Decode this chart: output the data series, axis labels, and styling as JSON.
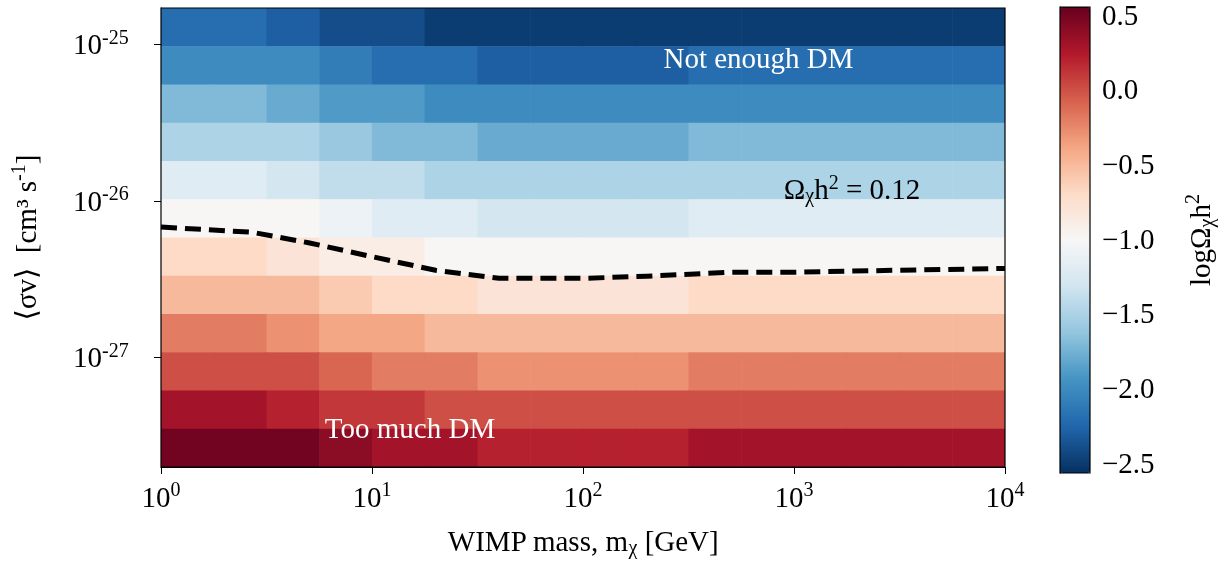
{
  "chart_data": {
    "type": "heatmap",
    "xlabel": "WIMP mass, m$_{χ}$ [GeV]",
    "ylabel": "⟨σv⟩  [cm³ s$^{-1}$]",
    "clabel": "logΩ$_{χ}$h$^{2}$",
    "log": "xy",
    "xlim": [
      1,
      10000
    ],
    "ylim": [
      2e-28,
      1.7e-25
    ],
    "xticks": [
      {
        "value": 1,
        "label": "10$^{0}$"
      },
      {
        "value": 10,
        "label": "10$^{1}$"
      },
      {
        "value": 100,
        "label": "10$^{2}$"
      },
      {
        "value": 1000,
        "label": "10$^{3}$"
      },
      {
        "value": 10000,
        "label": "10$^{4}$"
      }
    ],
    "yticks": [
      {
        "value": 1e-27,
        "label": "10$^{-27}$"
      },
      {
        "value": 1e-26,
        "label": "10$^{-26}$"
      },
      {
        "value": 1e-25,
        "label": "10$^{-25}$"
      }
    ],
    "x": [
      1.33,
      2.37,
      4.22,
      7.5,
      13.3,
      23.7,
      42.2,
      75,
      133,
      237,
      422,
      750,
      1333,
      2371,
      4217,
      7499
    ],
    "cells": [
      [
        -2.2,
        -2.2,
        -2.3,
        -2.4,
        -2.4,
        -2.5,
        -2.5,
        -2.5,
        -2.5,
        -2.5,
        -2.5,
        -2.5,
        -2.5,
        -2.5,
        -2.5,
        -2.5
      ],
      [
        -2.0,
        -2.0,
        -2.0,
        -2.1,
        -2.2,
        -2.2,
        -2.3,
        -2.3,
        -2.3,
        -2.3,
        -2.2,
        -2.2,
        -2.2,
        -2.2,
        -2.2,
        -2.2
      ],
      [
        -1.7,
        -1.7,
        -1.8,
        -1.9,
        -1.9,
        -2.0,
        -2.0,
        -2.0,
        -2.0,
        -2.0,
        -2.0,
        -2.0,
        -2.0,
        -2.0,
        -2.0,
        -2.0
      ],
      [
        -1.5,
        -1.5,
        -1.5,
        -1.6,
        -1.7,
        -1.7,
        -1.8,
        -1.8,
        -1.8,
        -1.8,
        -1.7,
        -1.7,
        -1.7,
        -1.7,
        -1.7,
        -1.7
      ],
      [
        -1.2,
        -1.2,
        -1.3,
        -1.4,
        -1.4,
        -1.5,
        -1.5,
        -1.5,
        -1.5,
        -1.5,
        -1.5,
        -1.5,
        -1.5,
        -1.5,
        -1.5,
        -1.5
      ],
      [
        -1.0,
        -1.0,
        -1.0,
        -1.1,
        -1.2,
        -1.2,
        -1.3,
        -1.3,
        -1.3,
        -1.3,
        -1.2,
        -1.2,
        -1.2,
        -1.2,
        -1.2,
        -1.2
      ],
      [
        -0.7,
        -0.7,
        -0.8,
        -0.9,
        -0.9,
        -1.0,
        -1.0,
        -1.0,
        -1.0,
        -1.0,
        -1.0,
        -1.0,
        -1.0,
        -1.0,
        -1.0,
        -1.0
      ],
      [
        -0.5,
        -0.5,
        -0.5,
        -0.6,
        -0.7,
        -0.7,
        -0.8,
        -0.8,
        -0.8,
        -0.8,
        -0.7,
        -0.7,
        -0.7,
        -0.7,
        -0.7,
        -0.7
      ],
      [
        -0.2,
        -0.2,
        -0.3,
        -0.4,
        -0.4,
        -0.5,
        -0.5,
        -0.5,
        -0.5,
        -0.5,
        -0.5,
        -0.5,
        -0.5,
        -0.5,
        -0.5,
        -0.5
      ],
      [
        0.0,
        0.0,
        0.0,
        -0.1,
        -0.2,
        -0.2,
        -0.3,
        -0.3,
        -0.3,
        -0.3,
        -0.2,
        -0.2,
        -0.2,
        -0.2,
        -0.2,
        -0.2
      ],
      [
        0.3,
        0.3,
        0.2,
        0.1,
        0.1,
        0.0,
        0.0,
        0.0,
        0.0,
        0.0,
        0.0,
        0.0,
        0.0,
        0.0,
        0.0,
        0.0
      ],
      [
        0.5,
        0.5,
        0.5,
        0.4,
        0.3,
        0.3,
        0.2,
        0.2,
        0.2,
        0.2,
        0.3,
        0.3,
        0.3,
        0.3,
        0.3,
        0.3
      ]
    ],
    "clim": [
      -2.57,
      0.55
    ],
    "cticks": [
      {
        "value": -2.5,
        "label": "−2.5"
      },
      {
        "value": -2.0,
        "label": "−2.0"
      },
      {
        "value": -1.5,
        "label": "−1.5"
      },
      {
        "value": -1.0,
        "label": "−1.0"
      },
      {
        "value": -0.5,
        "label": "−0.5"
      },
      {
        "value": 0.0,
        "label": "0.0"
      },
      {
        "value": 0.5,
        "label": "0.5"
      }
    ],
    "series": [
      {
        "type": "line",
        "color": "#000000",
        "line_style": "dashed",
        "x": [
          1,
          2.7,
          5,
          10,
          20,
          40,
          70,
          100,
          200,
          500,
          1000,
          3000,
          10000
        ],
        "values": [
          6.8e-27,
          6.3e-27,
          5.4e-27,
          4.4e-27,
          3.6e-27,
          3.2e-27,
          3.2e-27,
          3.2e-27,
          3.3e-27,
          3.5e-27,
          3.5e-27,
          3.6e-27,
          3.7e-27
        ]
      }
    ],
    "annotations": [
      "Not enough DM",
      "Too much DM",
      "Ω$_{χ}$h$^{2}$ = 0.12"
    ]
  }
}
